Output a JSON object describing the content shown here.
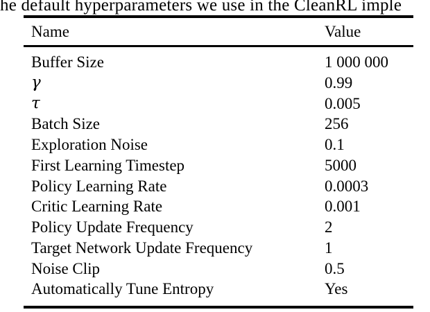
{
  "page": {
    "caption_fragment": "he default hyperparameters we use in the CleanRL imple",
    "colors": {
      "text": "#000000",
      "background": "#ffffff",
      "rule": "#000000"
    }
  },
  "table": {
    "columns": [
      "Name",
      "Value"
    ],
    "rows": [
      {
        "name": "Buffer Size",
        "value": "1 000 000"
      },
      {
        "name": "γ",
        "value": "0.99"
      },
      {
        "name": "τ",
        "value": "0.005"
      },
      {
        "name": "Batch Size",
        "value": "256"
      },
      {
        "name": "Exploration Noise",
        "value": "0.1"
      },
      {
        "name": "First Learning Timestep",
        "value": "5000"
      },
      {
        "name": "Policy Learning Rate",
        "value": "0.0003"
      },
      {
        "name": "Critic Learning Rate",
        "value": "0.001"
      },
      {
        "name": "Policy Update Frequency",
        "value": "2"
      },
      {
        "name": "Target Network Update Frequency",
        "value": "1"
      },
      {
        "name": "Noise Clip",
        "value": "0.5"
      },
      {
        "name": "Automatically Tune Entropy",
        "value": "Yes"
      }
    ]
  }
}
